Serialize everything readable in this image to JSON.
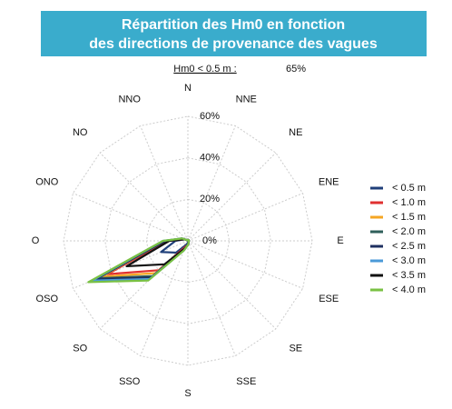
{
  "chart_data": {
    "type": "radar",
    "title": [
      "Répartition des Hm0 en fonction",
      "des directions de provenance des vagues"
    ],
    "subtitle": {
      "label": "Hm0 < 0.5 m :",
      "value": "65%"
    },
    "categories": [
      "N",
      "NNE",
      "NE",
      "ENE",
      "E",
      "ESE",
      "SE",
      "SSE",
      "S",
      "SSO",
      "SO",
      "OSO",
      "O",
      "ONO",
      "NO",
      "NNO"
    ],
    "ylim": [
      0,
      60
    ],
    "yticks": [
      {
        "value": 0,
        "label": "0%"
      },
      {
        "value": 20,
        "label": "20%"
      },
      {
        "value": 40,
        "label": "40%"
      },
      {
        "value": 60,
        "label": "60%"
      }
    ],
    "grid": true,
    "series": [
      {
        "name": "< 0.5 m",
        "color": "#1f3f7a",
        "values": [
          0.5,
          0.5,
          0.5,
          0.5,
          0.5,
          0.5,
          0.5,
          0.5,
          1,
          2,
          8,
          14,
          6,
          2,
          0.5,
          0.5
        ]
      },
      {
        "name": "< 1.0 m",
        "color": "#e03030",
        "values": [
          0.5,
          0.5,
          0.5,
          0.5,
          0.5,
          0.5,
          0.5,
          1,
          2,
          3,
          20,
          42,
          10,
          2,
          0.5,
          0.5
        ]
      },
      {
        "name": "< 1.5 m",
        "color": "#f5a623",
        "values": [
          0.5,
          0.5,
          0.5,
          0.5,
          0.5,
          0.5,
          0.5,
          1,
          2,
          4,
          22,
          45,
          11,
          3,
          0.5,
          0.5
        ]
      },
      {
        "name": "< 2.0 m",
        "color": "#2f5f5a",
        "values": [
          0.5,
          0.5,
          0.5,
          0.5,
          0.5,
          0.5,
          0.5,
          1,
          2,
          4,
          24,
          47,
          11,
          3,
          0.5,
          0.5
        ]
      },
      {
        "name": "< 2.5 m",
        "color": "#1f3060",
        "values": [
          0.5,
          0.5,
          0.5,
          0.5,
          0.5,
          0.5,
          0.5,
          1,
          2,
          4,
          25,
          48,
          11,
          3,
          0.5,
          0.5
        ]
      },
      {
        "name": "< 3.0 m",
        "color": "#4a9ad8",
        "values": [
          0.5,
          0.5,
          0.5,
          0.5,
          0.5,
          0.5,
          0.5,
          1,
          2,
          5,
          26,
          50,
          12,
          3,
          0.5,
          0.5
        ]
      },
      {
        "name": "< 3.5 m",
        "color": "#111111",
        "values": [
          0.5,
          0.5,
          0.5,
          0.5,
          0.5,
          0.5,
          0.5,
          1,
          2,
          4,
          16,
          32,
          9,
          2,
          0.5,
          0.5
        ]
      },
      {
        "name": "< 4.0 m",
        "color": "#7ac143",
        "values": [
          0.5,
          0.5,
          0.5,
          0.5,
          0.5,
          0.5,
          0.5,
          1,
          2,
          5,
          27,
          52,
          12,
          3,
          0.5,
          0.5
        ]
      }
    ]
  }
}
